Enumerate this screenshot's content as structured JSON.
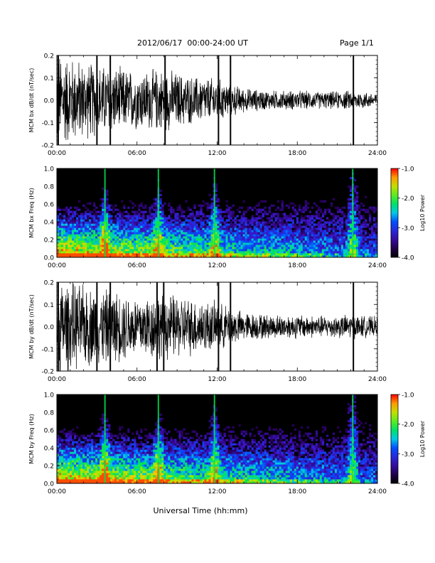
{
  "header": {
    "title": "2012/06/17  00:00-24:00 UT",
    "page": "Page 1/1"
  },
  "xlabel": "Universal Time (hh:mm)",
  "chart_data": [
    {
      "type": "line",
      "ylabel": "MCM bx dB/dt (nT/sec)",
      "x_ticks": [
        "00:00",
        "06:00",
        "12:00",
        "18:00",
        "24:00"
      ],
      "xlim": [
        0,
        24
      ],
      "ylim": [
        -0.2,
        0.2
      ],
      "y_ticks": [
        "-0.2",
        "-0.1",
        "0.0",
        "0.1",
        "0.2"
      ],
      "amplitude_profile": {
        "hours": [
          0,
          2,
          4,
          6,
          8,
          10,
          12,
          13,
          14,
          16,
          18,
          20,
          22,
          24
        ],
        "amplitude": [
          0.2,
          0.16,
          0.14,
          0.12,
          0.13,
          0.1,
          0.09,
          0.07,
          0.05,
          0.04,
          0.04,
          0.035,
          0.04,
          0.03
        ]
      },
      "spikes": [
        0.1,
        3.0,
        4.0,
        8.1,
        12.1,
        13.0,
        22.2
      ]
    },
    {
      "type": "heatmap",
      "ylabel": "MCM bx Freq (Hz)",
      "x_ticks": [
        "00:00",
        "06:00",
        "12:00",
        "18:00",
        "24:00"
      ],
      "xlim": [
        0,
        24
      ],
      "ylim": [
        0,
        1.0
      ],
      "y_ticks": [
        "0.0",
        "0.2",
        "0.4",
        "0.6",
        "0.8",
        "1.0"
      ],
      "colorbar": {
        "label": "Log10 Power",
        "ticks": [
          "-1.0",
          "-2.0",
          "-3.0",
          "-4.0"
        ],
        "range": [
          -4.0,
          -1.0
        ]
      },
      "bright_lines": [
        3.6,
        7.6,
        11.8,
        22.1,
        22.2
      ],
      "spikes": [
        3.6,
        7.6,
        11.8,
        22.15
      ]
    },
    {
      "type": "line",
      "ylabel": "MCM by dB/dt (nT/sec)",
      "x_ticks": [
        "00:00",
        "06:00",
        "12:00",
        "18:00",
        "24:00"
      ],
      "xlim": [
        0,
        24
      ],
      "ylim": [
        -0.2,
        0.2
      ],
      "y_ticks": [
        "-0.2",
        "-0.1",
        "0.0",
        "0.1",
        "0.2"
      ],
      "amplitude_profile": {
        "hours": [
          0,
          2,
          4,
          6,
          8,
          10,
          12,
          13,
          14,
          16,
          18,
          20,
          22,
          24
        ],
        "amplitude": [
          0.2,
          0.17,
          0.15,
          0.13,
          0.14,
          0.12,
          0.1,
          0.08,
          0.06,
          0.05,
          0.05,
          0.045,
          0.05,
          0.04
        ]
      },
      "spikes": [
        0.1,
        3.0,
        4.0,
        7.5,
        8.0,
        12.1,
        13.0,
        22.2
      ]
    },
    {
      "type": "heatmap",
      "ylabel": "MCM by Freq (Hz)",
      "x_ticks": [
        "00:00",
        "06:00",
        "12:00",
        "18:00",
        "24:00"
      ],
      "xlim": [
        0,
        24
      ],
      "ylim": [
        0,
        1.0
      ],
      "y_ticks": [
        "0.0",
        "0.2",
        "0.4",
        "0.6",
        "0.8",
        "1.0"
      ],
      "colorbar": {
        "label": "Log10 Power",
        "ticks": [
          "-1.0",
          "-2.0",
          "-3.0",
          "-4.0"
        ],
        "range": [
          -4.0,
          -1.0
        ]
      },
      "bright_lines": [
        3.6,
        7.6,
        11.8,
        22.1,
        22.2
      ],
      "spikes": [
        3.6,
        7.6,
        11.8,
        22.15
      ]
    }
  ]
}
